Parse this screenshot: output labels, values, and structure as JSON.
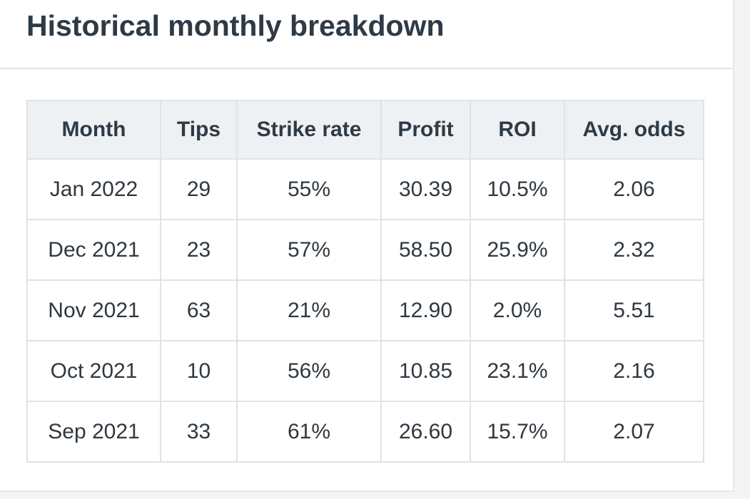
{
  "card": {
    "title": "Historical monthly breakdown"
  },
  "table": {
    "headers": [
      "Month",
      "Tips",
      "Strike rate",
      "Profit",
      "ROI",
      "Avg. odds"
    ],
    "rows": [
      [
        "Jan 2022",
        "29",
        "55%",
        "30.39",
        "10.5%",
        "2.06"
      ],
      [
        "Dec 2021",
        "23",
        "57%",
        "58.50",
        "25.9%",
        "2.32"
      ],
      [
        "Nov 2021",
        "63",
        "21%",
        "12.90",
        "2.0%",
        "5.51"
      ],
      [
        "Oct 2021",
        "10",
        "56%",
        "10.85",
        "23.1%",
        "2.16"
      ],
      [
        "Sep 2021",
        "33",
        "61%",
        "26.60",
        "15.7%",
        "2.07"
      ]
    ]
  },
  "colors": {
    "header_bg": "#eef1f3",
    "border": "#dfe3e6",
    "title_text": "#2e3a45"
  }
}
